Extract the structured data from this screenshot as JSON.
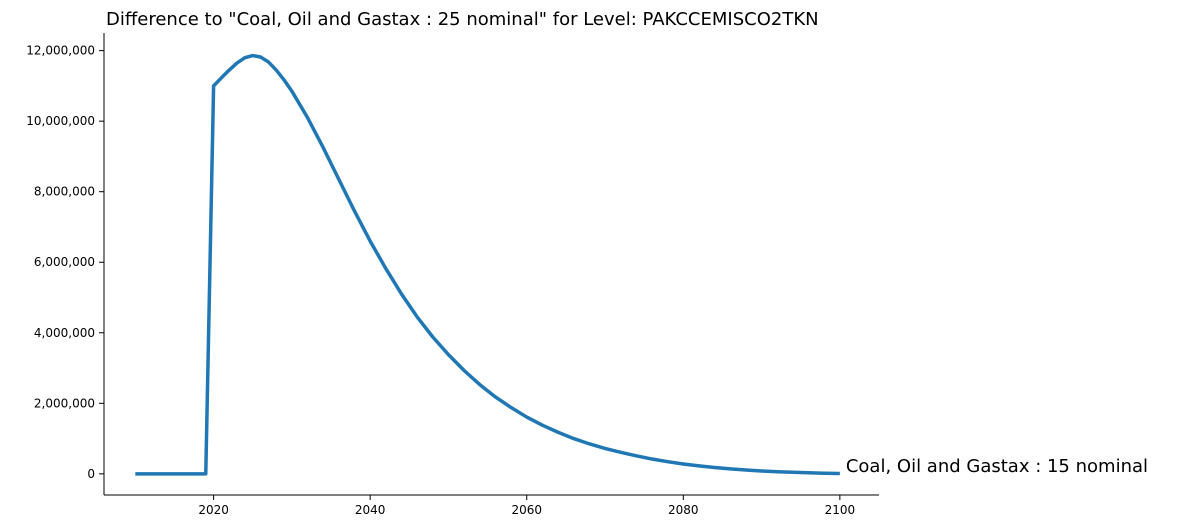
{
  "chart_data": {
    "type": "line",
    "title": "Difference to \"Coal, Oil and Gastax : 25 nominal\" for Level: PAKCCEMISCO2TKN",
    "xlabel": "",
    "ylabel": "",
    "xlim": [
      2006,
      2105
    ],
    "ylim": [
      -600000,
      12500000
    ],
    "x_ticks": [
      2020,
      2040,
      2060,
      2080,
      2100
    ],
    "x_tick_labels": [
      "2020",
      "2040",
      "2060",
      "2080",
      "2100"
    ],
    "y_ticks": [
      0,
      2000000,
      4000000,
      6000000,
      8000000,
      10000000,
      12000000
    ],
    "y_tick_labels": [
      "0",
      "2,000,000",
      "4,000,000",
      "6,000,000",
      "8,000,000",
      "10,000,000",
      "12,000,000"
    ],
    "grid": false,
    "legend": "none",
    "series": [
      {
        "name": "Coal, Oil and Gastax : 15 nominal",
        "color": "#1f77b4",
        "x": [
          2010,
          2019,
          2020,
          2021,
          2022,
          2023,
          2024,
          2025,
          2026,
          2027,
          2028,
          2029,
          2030,
          2032,
          2034,
          2036,
          2038,
          2040,
          2042,
          2044,
          2046,
          2048,
          2050,
          2052,
          2054,
          2056,
          2058,
          2060,
          2062,
          2064,
          2066,
          2068,
          2070,
          2072,
          2074,
          2076,
          2078,
          2080,
          2082,
          2084,
          2086,
          2088,
          2090,
          2092,
          2094,
          2096,
          2098,
          2100
        ],
        "values": [
          0,
          0,
          11000000,
          11230000,
          11450000,
          11650000,
          11800000,
          11860000,
          11820000,
          11680000,
          11450000,
          11170000,
          10850000,
          10100000,
          9250000,
          8350000,
          7450000,
          6600000,
          5820000,
          5100000,
          4450000,
          3880000,
          3380000,
          2930000,
          2530000,
          2180000,
          1880000,
          1610000,
          1380000,
          1180000,
          1000000,
          850000,
          720000,
          610000,
          510000,
          420000,
          345000,
          280000,
          225000,
          180000,
          140000,
          108000,
          82000,
          61000,
          44000,
          30000,
          18000,
          8000
        ]
      }
    ],
    "annotations": [
      {
        "text": "Coal, Oil and Gastax : 15 nominal",
        "x": 2100,
        "y": 0
      }
    ]
  }
}
